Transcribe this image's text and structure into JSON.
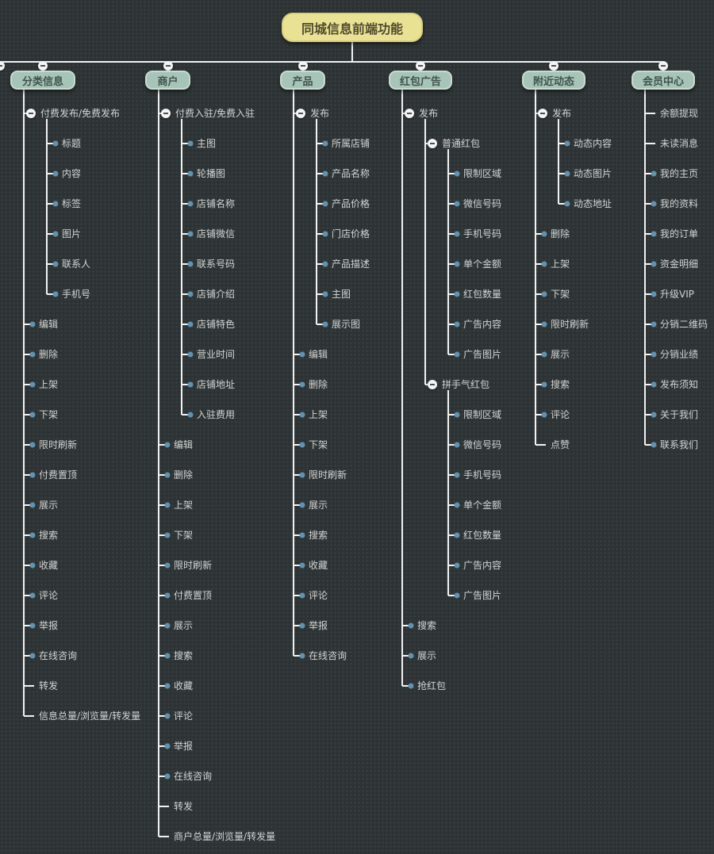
{
  "root": {
    "label": "同城信息前端功能"
  },
  "colors": {
    "background": "#2d3334",
    "grid_dot": "#3a4142",
    "line": "#f2f2f2",
    "root_bg": "#e9e294",
    "root_border": "#d8d07c",
    "root_text": "#4f4a2e",
    "branch_bg": "#a6c4b8",
    "branch_border": "#c9dbd1",
    "branch_text": "#41524c",
    "leaf_text": "#d2d4d4",
    "dot": "#6092b3",
    "minus_bg": "#f4f4f4",
    "minus_bar": "#4a4f50"
  },
  "branches": [
    {
      "label": "分类信息",
      "children": [
        {
          "label": "付费发布/免费发布",
          "icon": "minus",
          "children": [
            {
              "label": "标题",
              "icon": "dot"
            },
            {
              "label": "内容",
              "icon": "dot"
            },
            {
              "label": "标签",
              "icon": "dot"
            },
            {
              "label": "图片",
              "icon": "dot"
            },
            {
              "label": "联系人",
              "icon": "dot"
            },
            {
              "label": "手机号",
              "icon": "dot"
            }
          ]
        },
        {
          "label": "编辑",
          "icon": "dot"
        },
        {
          "label": "删除",
          "icon": "dot"
        },
        {
          "label": "上架",
          "icon": "dot"
        },
        {
          "label": "下架",
          "icon": "dot"
        },
        {
          "label": "限时刷新",
          "icon": "dot"
        },
        {
          "label": "付费置顶",
          "icon": "dot"
        },
        {
          "label": "展示",
          "icon": "dot"
        },
        {
          "label": "搜索",
          "icon": "dot"
        },
        {
          "label": "收藏",
          "icon": "dot"
        },
        {
          "label": "评论",
          "icon": "dot"
        },
        {
          "label": "举报",
          "icon": "dot"
        },
        {
          "label": "在线咨询",
          "icon": "dot"
        },
        {
          "label": "转发",
          "icon": "none"
        },
        {
          "label": "信息总量/浏览量/转发量",
          "icon": "none"
        }
      ]
    },
    {
      "label": "商户",
      "children": [
        {
          "label": "付费入驻/免费入驻",
          "icon": "minus",
          "children": [
            {
              "label": "主图",
              "icon": "dot"
            },
            {
              "label": "轮播图",
              "icon": "dot"
            },
            {
              "label": "店铺名称",
              "icon": "dot"
            },
            {
              "label": "店铺微信",
              "icon": "dot"
            },
            {
              "label": "联系号码",
              "icon": "dot"
            },
            {
              "label": "店铺介绍",
              "icon": "dot"
            },
            {
              "label": "店铺特色",
              "icon": "dot"
            },
            {
              "label": "营业时间",
              "icon": "dot"
            },
            {
              "label": "店铺地址",
              "icon": "dot"
            },
            {
              "label": "入驻费用",
              "icon": "dot"
            }
          ]
        },
        {
          "label": "编辑",
          "icon": "dot"
        },
        {
          "label": "删除",
          "icon": "dot"
        },
        {
          "label": "上架",
          "icon": "dot"
        },
        {
          "label": "下架",
          "icon": "dot"
        },
        {
          "label": "限时刷新",
          "icon": "dot"
        },
        {
          "label": "付费置顶",
          "icon": "dot"
        },
        {
          "label": "展示",
          "icon": "dot"
        },
        {
          "label": "搜索",
          "icon": "dot"
        },
        {
          "label": "收藏",
          "icon": "dot"
        },
        {
          "label": "评论",
          "icon": "dot"
        },
        {
          "label": "举报",
          "icon": "dot"
        },
        {
          "label": "在线咨询",
          "icon": "dot"
        },
        {
          "label": "转发",
          "icon": "none"
        },
        {
          "label": "商户总量/浏览量/转发量",
          "icon": "none"
        }
      ]
    },
    {
      "label": "产品",
      "children": [
        {
          "label": "发布",
          "icon": "minus",
          "children": [
            {
              "label": "所属店铺",
              "icon": "dot"
            },
            {
              "label": "产品名称",
              "icon": "dot"
            },
            {
              "label": "产品价格",
              "icon": "dot"
            },
            {
              "label": "门店价格",
              "icon": "dot"
            },
            {
              "label": "产品描述",
              "icon": "dot"
            },
            {
              "label": "主图",
              "icon": "dot"
            },
            {
              "label": "展示图",
              "icon": "dot"
            }
          ]
        },
        {
          "label": "编辑",
          "icon": "dot"
        },
        {
          "label": "删除",
          "icon": "dot"
        },
        {
          "label": "上架",
          "icon": "dot"
        },
        {
          "label": "下架",
          "icon": "dot"
        },
        {
          "label": "限时刷新",
          "icon": "dot"
        },
        {
          "label": "展示",
          "icon": "dot"
        },
        {
          "label": "搜索",
          "icon": "dot"
        },
        {
          "label": "收藏",
          "icon": "dot"
        },
        {
          "label": "评论",
          "icon": "dot"
        },
        {
          "label": "举报",
          "icon": "dot"
        },
        {
          "label": "在线咨询",
          "icon": "dot"
        }
      ]
    },
    {
      "label": "红包广告",
      "children": [
        {
          "label": "发布",
          "icon": "minus",
          "children": [
            {
              "label": "普通红包",
              "icon": "minus",
              "children": [
                {
                  "label": "限制区域",
                  "icon": "dot"
                },
                {
                  "label": "微信号码",
                  "icon": "dot"
                },
                {
                  "label": "手机号码",
                  "icon": "dot"
                },
                {
                  "label": "单个金额",
                  "icon": "dot"
                },
                {
                  "label": "红包数量",
                  "icon": "dot"
                },
                {
                  "label": "广告内容",
                  "icon": "dot"
                },
                {
                  "label": "广告图片",
                  "icon": "dot"
                }
              ]
            },
            {
              "label": "拼手气红包",
              "icon": "minus",
              "children": [
                {
                  "label": "限制区域",
                  "icon": "dot"
                },
                {
                  "label": "微信号码",
                  "icon": "dot"
                },
                {
                  "label": "手机号码",
                  "icon": "dot"
                },
                {
                  "label": "单个金额",
                  "icon": "dot"
                },
                {
                  "label": "红包数量",
                  "icon": "dot"
                },
                {
                  "label": "广告内容",
                  "icon": "dot"
                },
                {
                  "label": "广告图片",
                  "icon": "dot"
                }
              ]
            }
          ]
        },
        {
          "label": "搜索",
          "icon": "dot"
        },
        {
          "label": "展示",
          "icon": "dot"
        },
        {
          "label": "抢红包",
          "icon": "dot"
        }
      ]
    },
    {
      "label": "附近动态",
      "children": [
        {
          "label": "发布",
          "icon": "minus",
          "children": [
            {
              "label": "动态内容",
              "icon": "dot"
            },
            {
              "label": "动态图片",
              "icon": "dot"
            },
            {
              "label": "动态地址",
              "icon": "dot"
            }
          ]
        },
        {
          "label": "删除",
          "icon": "dot"
        },
        {
          "label": "上架",
          "icon": "dot"
        },
        {
          "label": "下架",
          "icon": "dot"
        },
        {
          "label": "限时刷新",
          "icon": "dot"
        },
        {
          "label": "展示",
          "icon": "dot"
        },
        {
          "label": "搜索",
          "icon": "dot"
        },
        {
          "label": "评论",
          "icon": "dot"
        },
        {
          "label": "点赞",
          "icon": "none"
        }
      ]
    },
    {
      "label": "会员中心",
      "children": [
        {
          "label": "余额提现",
          "icon": "none"
        },
        {
          "label": "未读消息",
          "icon": "none"
        },
        {
          "label": "我的主页",
          "icon": "dot"
        },
        {
          "label": "我的资料",
          "icon": "dot"
        },
        {
          "label": "我的订单",
          "icon": "dot"
        },
        {
          "label": "资金明细",
          "icon": "dot"
        },
        {
          "label": "升级VIP",
          "icon": "dot"
        },
        {
          "label": "分销二维码",
          "icon": "dot"
        },
        {
          "label": "分销业绩",
          "icon": "dot"
        },
        {
          "label": "发布须知",
          "icon": "dot"
        },
        {
          "label": "关于我们",
          "icon": "dot"
        },
        {
          "label": "联系我们",
          "icon": "dot"
        }
      ]
    }
  ]
}
